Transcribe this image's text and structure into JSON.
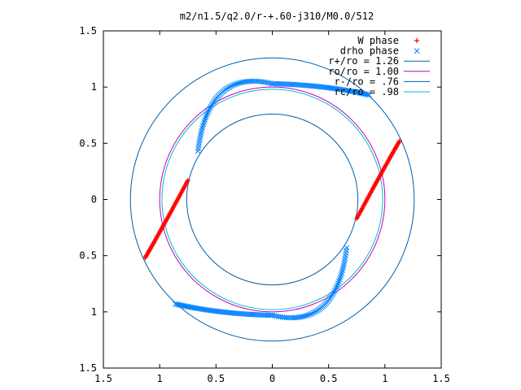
{
  "chart_data": {
    "type": "scatter",
    "title": "m2/n1.5/q2.0/r-+.60-j310/M0.0/512",
    "xlabel": "",
    "ylabel": "",
    "xlim": [
      -1.5,
      1.5
    ],
    "ylim": [
      -1.5,
      1.5
    ],
    "x_tick_values": [
      -1.5,
      -1,
      -0.5,
      0,
      0.5,
      1,
      1.5
    ],
    "x_tick_labels": [
      "1.5",
      "1",
      "0.5",
      "0",
      "0.5",
      "1",
      "1.5"
    ],
    "y_tick_values": [
      1.5,
      1,
      0.5,
      0,
      -0.5,
      -1,
      -1.5
    ],
    "y_tick_labels": [
      "1.5",
      "1",
      "0.5",
      "0",
      "0.5",
      "1",
      "1.5"
    ],
    "grid": false,
    "legend_position": "top-right",
    "legend": [
      {
        "label": "W phase",
        "marker": "+",
        "color": "#ff0000"
      },
      {
        "label": "drho phase",
        "marker": "x",
        "color": "#0080ff"
      },
      {
        "label": "r+/ro = 1.26",
        "marker": "line",
        "color": "#0060ad"
      },
      {
        "label": "ro/ro = 1.00",
        "marker": "line",
        "color": "#c000c0"
      },
      {
        "label": "r-/ro = .76",
        "marker": "line",
        "color": "#0060ad"
      },
      {
        "label": "rc/ro = .98",
        "marker": "line",
        "color": "#00c0c0"
      }
    ],
    "circles": [
      {
        "name": "r+/ro = 1.26",
        "radius": 1.26,
        "color": "#0060ad"
      },
      {
        "name": "ro/ro = 1.00",
        "radius": 1.0,
        "color": "#c000c0"
      },
      {
        "name": "r-/ro = .76",
        "radius": 0.76,
        "color": "#0060ad"
      },
      {
        "name": "rc/ro = .98",
        "radius": 0.98,
        "color": "#00c0c0"
      }
    ],
    "series": [
      {
        "name": "W phase",
        "marker": "+",
        "color": "#ff0000",
        "arcs": [
          {
            "start": [
              1.13,
              0.52
            ],
            "mid": [
              0.95,
              0.2
            ],
            "end": [
              0.75,
              -0.17
            ]
          },
          {
            "start": [
              -0.75,
              0.17
            ],
            "mid": [
              -0.95,
              -0.2
            ],
            "end": [
              -1.13,
              -0.52
            ]
          }
        ]
      },
      {
        "name": "drho phase",
        "marker": "x",
        "color": "#0080ff",
        "arcs": [
          {
            "start": [
              -0.66,
              0.43
            ],
            "mid": [
              -0.45,
              0.95
            ],
            "end": [
              0.0,
              1.03
            ]
          },
          {
            "start": [
              0.0,
              1.03
            ],
            "mid": [
              0.45,
              1.0
            ],
            "end": [
              0.86,
              0.93
            ]
          },
          {
            "start": [
              0.66,
              -0.43
            ],
            "mid": [
              0.45,
              -0.95
            ],
            "end": [
              0.0,
              -1.03
            ]
          },
          {
            "start": [
              0.0,
              -1.03
            ],
            "mid": [
              -0.45,
              -1.0
            ],
            "end": [
              -0.86,
              -0.93
            ]
          }
        ]
      }
    ]
  }
}
